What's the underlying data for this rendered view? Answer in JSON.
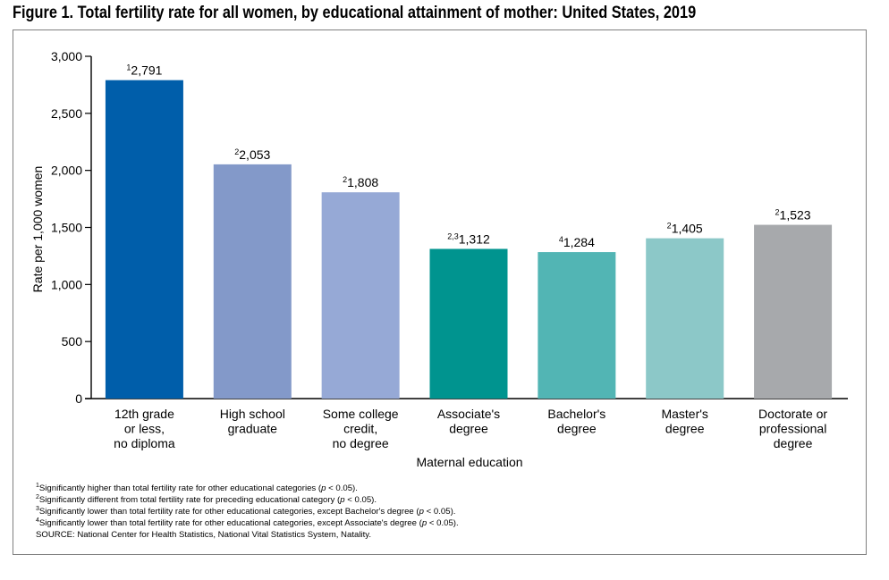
{
  "figure": {
    "title": "Figure 1. Total fertility rate for all women, by educational attainment of mother: United States, 2019"
  },
  "chart_data": {
    "type": "bar",
    "title": "Figure 1. Total fertility rate for all women, by educational attainment of mother: United States, 2019",
    "xlabel": "Maternal education",
    "ylabel": "Rate per 1,000 women",
    "ylim": [
      0,
      3000
    ],
    "yticks": [
      0,
      500,
      1000,
      1500,
      2000,
      2500,
      3000
    ],
    "ytick_labels": [
      "0",
      "500",
      "1,000",
      "1,500",
      "2,000",
      "2,500",
      "3,000"
    ],
    "grid": false,
    "categories": [
      [
        "12th grade",
        "or less,",
        "no diploma"
      ],
      [
        "High school",
        "graduate"
      ],
      [
        "Some college",
        "credit,",
        "no degree"
      ],
      [
        "Associate's",
        "degree"
      ],
      [
        "Bachelor's",
        "degree"
      ],
      [
        "Master's",
        "degree"
      ],
      [
        "Doctorate or",
        "professional",
        "degree"
      ]
    ],
    "values": [
      2791,
      2053,
      1808,
      1312,
      1284,
      1405,
      1523
    ],
    "value_labels": [
      "2,791",
      "2,053",
      "1,808",
      "1,312",
      "1,284",
      "1,405",
      "1,523"
    ],
    "label_footnotes": [
      "1",
      "2",
      "2",
      "2,3",
      "4",
      "2",
      "2"
    ],
    "colors": [
      "#005eaa",
      "#8399c9",
      "#96a9d6",
      "#00948f",
      "#52b5b4",
      "#8cc8c8",
      "#a7a9ac"
    ]
  },
  "footnotes": [
    {
      "mark": "1",
      "text": "Significantly higher than total fertility rate for other educational categories (",
      "italic": "p",
      "tail": " < 0.05)."
    },
    {
      "mark": "2",
      "text": "Significantly different from total fertility rate for preceding educational category (",
      "italic": "p",
      "tail": " < 0.05)."
    },
    {
      "mark": "3",
      "text": "Significantly lower than total fertility rate for other educational categories, except Bachelor's degree  (",
      "italic": "p",
      "tail": " < 0.05)."
    },
    {
      "mark": "4",
      "text": "Significantly lower than total fertility rate for other educational categories, except Associate's degree (",
      "italic": "p",
      "tail": " < 0.05)."
    }
  ],
  "source": "SOURCE: National Center for Health Statistics, National Vital Statistics System, Natality."
}
